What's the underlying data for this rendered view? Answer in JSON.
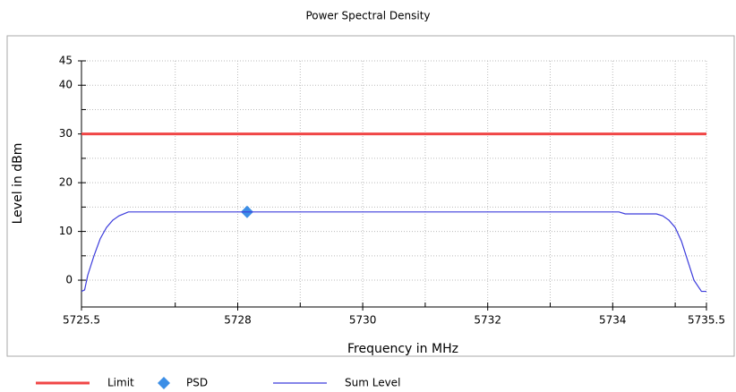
{
  "chart_data": {
    "type": "line",
    "title": "Power Spectral Density",
    "xlabel": "Frequency in MHz",
    "ylabel": "Level in dBm",
    "xlim": [
      5725.5,
      5735.5
    ],
    "xticks": [
      5725.5,
      5728,
      5730,
      5732,
      5734,
      5735.5
    ],
    "xticks_minor": [
      5727,
      5729,
      5731,
      5733,
      5735
    ],
    "ylim": [
      -5.5,
      45
    ],
    "yticks": [
      0,
      10,
      20,
      30,
      40,
      45
    ],
    "yticks_minor": [
      5,
      15,
      25,
      35
    ],
    "grid": true,
    "legend": "bottom",
    "series": [
      {
        "name": "Limit",
        "color": "#f04646",
        "style": "line",
        "x": [
          5725.5,
          5735.5
        ],
        "values": [
          30,
          30
        ]
      },
      {
        "name": "PSD",
        "color": "#3c8ee6",
        "style": "marker",
        "x": [
          5728.15
        ],
        "values": [
          14
        ]
      },
      {
        "name": "Sum Level",
        "color": "#3c3cdc",
        "style": "line",
        "x": [
          5725.5,
          5725.55,
          5725.6,
          5725.7,
          5725.8,
          5725.9,
          5726.0,
          5726.1,
          5726.25,
          5734.1,
          5734.2,
          5734.7,
          5734.8,
          5734.9,
          5735.0,
          5735.1,
          5735.2,
          5735.3,
          5735.42,
          5735.5
        ],
        "values": [
          -2.3,
          -2,
          1,
          5,
          8.5,
          10.8,
          12.3,
          13.2,
          14,
          14,
          13.6,
          13.6,
          13.2,
          12.3,
          10.8,
          8,
          4,
          0,
          -2.3,
          -2.3
        ]
      }
    ]
  }
}
